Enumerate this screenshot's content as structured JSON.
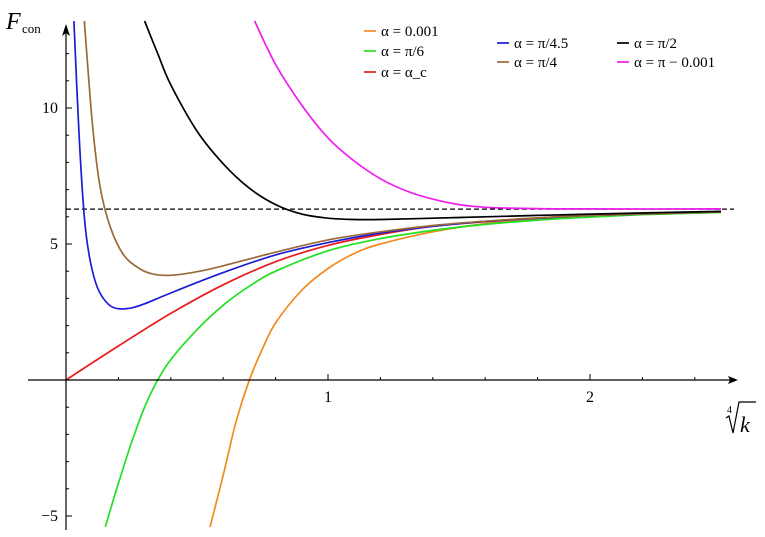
{
  "chart_data": {
    "type": "line",
    "ylabel": "F",
    "ylabel_sub": "con",
    "xlabel_index": "4",
    "xlabel_var": "k",
    "xlim": [
      -0.15,
      2.55
    ],
    "ylim": [
      -5.4,
      13.2
    ],
    "x_ticks": [
      {
        "value": 1,
        "label": "1"
      },
      {
        "value": 2,
        "label": "2"
      }
    ],
    "y_ticks": [
      {
        "value": -5,
        "label": "−5"
      },
      {
        "value": 5,
        "label": "5"
      },
      {
        "value": 10,
        "label": "10"
      }
    ],
    "reference_line": {
      "y": 6.283,
      "style": "dashed"
    },
    "legend_position": "top-right",
    "series": [
      {
        "name": "α = 0.001",
        "color": "#f28a1c",
        "points": [
          [
            0.55,
            -5.4
          ],
          [
            0.6,
            -3.5
          ],
          [
            0.65,
            -1.5
          ],
          [
            0.7,
            0
          ],
          [
            0.75,
            1.15
          ],
          [
            0.8,
            2.1
          ],
          [
            0.9,
            3.3
          ],
          [
            1.0,
            4.1
          ],
          [
            1.1,
            4.65
          ],
          [
            1.2,
            5.0
          ],
          [
            1.4,
            5.45
          ],
          [
            1.6,
            5.75
          ],
          [
            1.8,
            5.92
          ],
          [
            2.0,
            6.02
          ],
          [
            2.2,
            6.1
          ],
          [
            2.5,
            6.17
          ]
        ]
      },
      {
        "name": "α = π/6",
        "color": "#22e022",
        "points": [
          [
            0.15,
            -5.4
          ],
          [
            0.2,
            -3.8
          ],
          [
            0.25,
            -2.3
          ],
          [
            0.3,
            -1.0
          ],
          [
            0.35,
            0
          ],
          [
            0.4,
            0.75
          ],
          [
            0.5,
            1.85
          ],
          [
            0.6,
            2.75
          ],
          [
            0.7,
            3.45
          ],
          [
            0.8,
            4.0
          ],
          [
            1.0,
            4.75
          ],
          [
            1.2,
            5.2
          ],
          [
            1.4,
            5.5
          ],
          [
            1.6,
            5.72
          ],
          [
            1.8,
            5.88
          ],
          [
            2.0,
            5.99
          ],
          [
            2.2,
            6.08
          ],
          [
            2.5,
            6.16
          ]
        ]
      },
      {
        "name": "α = α_c",
        "color": "#e81c1c",
        "points": [
          [
            0,
            0
          ],
          [
            0.2,
            1.25
          ],
          [
            0.4,
            2.45
          ],
          [
            0.6,
            3.5
          ],
          [
            0.8,
            4.35
          ],
          [
            1.0,
            4.95
          ],
          [
            1.2,
            5.35
          ],
          [
            1.4,
            5.65
          ],
          [
            1.6,
            5.82
          ],
          [
            1.8,
            5.95
          ],
          [
            2.0,
            6.05
          ],
          [
            2.5,
            6.18
          ]
        ]
      },
      {
        "name": "α = π/4.5",
        "color": "#1c1cd6",
        "points": [
          [
            0.03,
            13.2
          ],
          [
            0.05,
            9.0
          ],
          [
            0.07,
            6.0
          ],
          [
            0.09,
            4.5
          ],
          [
            0.12,
            3.4
          ],
          [
            0.16,
            2.8
          ],
          [
            0.2,
            2.62
          ],
          [
            0.25,
            2.65
          ],
          [
            0.3,
            2.8
          ],
          [
            0.4,
            3.2
          ],
          [
            0.6,
            3.95
          ],
          [
            0.8,
            4.6
          ],
          [
            1.0,
            5.05
          ],
          [
            1.2,
            5.4
          ],
          [
            1.4,
            5.65
          ],
          [
            1.6,
            5.83
          ],
          [
            1.8,
            5.95
          ],
          [
            2.0,
            6.05
          ],
          [
            2.5,
            6.18
          ]
        ]
      },
      {
        "name": "α = π/4",
        "color": "#9a6a3a",
        "points": [
          [
            0.07,
            13.2
          ],
          [
            0.1,
            9.5
          ],
          [
            0.13,
            7.1
          ],
          [
            0.17,
            5.6
          ],
          [
            0.22,
            4.6
          ],
          [
            0.28,
            4.1
          ],
          [
            0.33,
            3.9
          ],
          [
            0.4,
            3.85
          ],
          [
            0.5,
            3.98
          ],
          [
            0.6,
            4.2
          ],
          [
            0.8,
            4.7
          ],
          [
            1.0,
            5.15
          ],
          [
            1.2,
            5.45
          ],
          [
            1.4,
            5.68
          ],
          [
            1.6,
            5.84
          ],
          [
            1.8,
            5.96
          ],
          [
            2.0,
            6.05
          ],
          [
            2.5,
            6.18
          ]
        ]
      },
      {
        "name": "α = π/2",
        "color": "#000000",
        "points": [
          [
            0.3,
            13.2
          ],
          [
            0.35,
            12.0
          ],
          [
            0.4,
            10.85
          ],
          [
            0.5,
            9.15
          ],
          [
            0.6,
            7.95
          ],
          [
            0.7,
            7.05
          ],
          [
            0.8,
            6.45
          ],
          [
            0.9,
            6.1
          ],
          [
            1.0,
            5.95
          ],
          [
            1.1,
            5.9
          ],
          [
            1.2,
            5.9
          ],
          [
            1.4,
            5.95
          ],
          [
            1.6,
            6.0
          ],
          [
            1.8,
            6.05
          ],
          [
            2.0,
            6.1
          ],
          [
            2.5,
            6.2
          ]
        ]
      },
      {
        "name": "α = π − 0.001",
        "color": "#ee1cee",
        "points": [
          [
            0.72,
            13.2
          ],
          [
            0.8,
            11.6
          ],
          [
            0.9,
            10.1
          ],
          [
            1.0,
            8.9
          ],
          [
            1.1,
            8.05
          ],
          [
            1.2,
            7.4
          ],
          [
            1.3,
            6.95
          ],
          [
            1.4,
            6.65
          ],
          [
            1.5,
            6.45
          ],
          [
            1.6,
            6.35
          ],
          [
            1.8,
            6.3
          ],
          [
            2.0,
            6.29
          ],
          [
            2.5,
            6.29
          ]
        ]
      }
    ]
  }
}
